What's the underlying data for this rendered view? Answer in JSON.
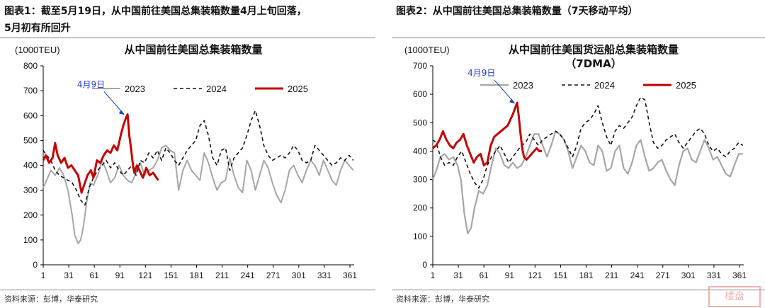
{
  "panel1": {
    "caption_line1": "图表1：截至5月19日，从中国前往美国总集装箱数量4月上旬回落，",
    "caption_line2": "5月初有所回升",
    "source": "资料来源：彭博，华泰研究"
  },
  "panel2": {
    "caption_line1": "图表2：从中国前往美国总集装箱数量（7天移动平均）",
    "source": "资料来源：彭博，华泰研究"
  },
  "watermark_text": "楼盘",
  "chart_data": [
    {
      "type": "line",
      "title": "从中国前往美国总集装箱数量",
      "subtitle": "",
      "unit_label": "(1000TEU)",
      "ylim": [
        0,
        800
      ],
      "yticks": [
        "0",
        "100",
        "200",
        "300",
        "400",
        "500",
        "600",
        "700",
        "800"
      ],
      "xlim": [
        1,
        366
      ],
      "xticks": [
        "1",
        "31",
        "61",
        "91",
        "121",
        "151",
        "181",
        "211",
        "241",
        "271",
        "301",
        "331",
        "361"
      ],
      "annotation": "4月9日",
      "annotation_point": [
        99,
        600
      ],
      "legend_position": "top-center",
      "series": [
        {
          "name": "2023",
          "color": "#a6a6a6",
          "dash": "solid",
          "width": 2,
          "x": [
            1,
            5,
            10,
            15,
            20,
            25,
            30,
            35,
            38,
            42,
            45,
            48,
            52,
            56,
            60,
            65,
            70,
            75,
            80,
            85,
            90,
            95,
            100,
            105,
            110,
            115,
            120,
            125,
            130,
            135,
            140,
            145,
            150,
            155,
            160,
            165,
            170,
            175,
            180,
            185,
            190,
            195,
            200,
            205,
            210,
            215,
            220,
            225,
            230,
            235,
            240,
            245,
            250,
            255,
            260,
            265,
            270,
            275,
            280,
            285,
            290,
            295,
            300,
            305,
            310,
            315,
            320,
            325,
            330,
            335,
            340,
            345,
            350,
            355,
            360,
            365
          ],
          "y": [
            310,
            340,
            380,
            360,
            390,
            360,
            300,
            200,
            120,
            85,
            100,
            150,
            250,
            330,
            320,
            360,
            420,
            380,
            330,
            350,
            400,
            360,
            340,
            330,
            370,
            410,
            360,
            380,
            390,
            420,
            470,
            480,
            460,
            450,
            300,
            380,
            420,
            380,
            360,
            340,
            450,
            410,
            350,
            300,
            330,
            340,
            430,
            360,
            310,
            290,
            420,
            380,
            300,
            360,
            420,
            390,
            330,
            280,
            250,
            300,
            380,
            400,
            360,
            330,
            380,
            420,
            400,
            360,
            420,
            380,
            340,
            320,
            380,
            420,
            400,
            380
          ]
        },
        {
          "name": "2024",
          "color": "#111111",
          "dash": "5,4",
          "width": 1.6,
          "x": [
            1,
            5,
            10,
            15,
            20,
            25,
            30,
            35,
            40,
            45,
            50,
            55,
            60,
            65,
            70,
            75,
            80,
            85,
            90,
            95,
            100,
            105,
            110,
            115,
            120,
            125,
            130,
            135,
            140,
            145,
            150,
            155,
            160,
            165,
            170,
            175,
            180,
            185,
            190,
            195,
            200,
            205,
            210,
            215,
            220,
            225,
            230,
            235,
            240,
            245,
            250,
            255,
            260,
            265,
            270,
            275,
            280,
            285,
            290,
            295,
            300,
            305,
            310,
            315,
            320,
            325,
            330,
            335,
            340,
            345,
            350,
            355,
            360,
            365
          ],
          "y": [
            460,
            440,
            420,
            380,
            360,
            350,
            340,
            330,
            300,
            260,
            240,
            310,
            350,
            380,
            400,
            420,
            390,
            410,
            380,
            360,
            380,
            400,
            360,
            420,
            410,
            450,
            430,
            460,
            420,
            470,
            450,
            420,
            400,
            430,
            460,
            480,
            500,
            560,
            580,
            520,
            430,
            400,
            460,
            470,
            380,
            430,
            450,
            470,
            520,
            580,
            620,
            560,
            480,
            440,
            420,
            430,
            440,
            430,
            450,
            480,
            460,
            420,
            410,
            420,
            480,
            460,
            440,
            420,
            400,
            410,
            430,
            420,
            440,
            420
          ]
        },
        {
          "name": "2025",
          "color": "#c00000",
          "dash": "solid",
          "width": 3,
          "x": [
            1,
            4,
            8,
            12,
            15,
            18,
            22,
            26,
            30,
            34,
            38,
            42,
            46,
            50,
            53,
            57,
            60,
            64,
            68,
            72,
            76,
            80,
            84,
            88,
            92,
            95,
            98,
            100,
            102,
            104,
            106,
            108,
            111,
            114,
            118,
            122,
            126,
            130,
            134,
            136
          ],
          "y": [
            420,
            440,
            410,
            430,
            490,
            440,
            410,
            430,
            390,
            400,
            380,
            360,
            290,
            330,
            360,
            380,
            350,
            420,
            410,
            440,
            460,
            450,
            480,
            460,
            520,
            560,
            590,
            605,
            520,
            470,
            410,
            370,
            400,
            380,
            350,
            390,
            360,
            370,
            350,
            340
          ]
        }
      ]
    },
    {
      "type": "line",
      "title": "从中国前往美国货运船总集装箱数量",
      "subtitle": "（7DMA）",
      "unit_label": "(1000TEU)",
      "ylim": [
        0,
        700
      ],
      "yticks": [
        "0",
        "100",
        "200",
        "300",
        "400",
        "500",
        "600",
        "700"
      ],
      "xlim": [
        1,
        366
      ],
      "xticks": [
        "1",
        "31",
        "61",
        "91",
        "121",
        "151",
        "181",
        "211",
        "241",
        "271",
        "301",
        "331",
        "361"
      ],
      "annotation": "4月9日",
      "annotation_point": [
        100,
        565
      ],
      "legend_position": "top-center",
      "series": [
        {
          "name": "2023",
          "color": "#a6a6a6",
          "dash": "solid",
          "width": 2.2,
          "x": [
            1,
            5,
            10,
            15,
            20,
            25,
            30,
            34,
            38,
            42,
            46,
            50,
            55,
            60,
            65,
            70,
            75,
            80,
            85,
            90,
            95,
            100,
            105,
            110,
            115,
            120,
            125,
            130,
            135,
            140,
            145,
            150,
            155,
            160,
            165,
            170,
            175,
            180,
            185,
            190,
            195,
            200,
            205,
            210,
            215,
            220,
            225,
            230,
            235,
            240,
            245,
            250,
            255,
            260,
            265,
            270,
            275,
            280,
            285,
            290,
            295,
            300,
            305,
            310,
            315,
            320,
            325,
            330,
            335,
            340,
            345,
            350,
            355,
            360,
            365
          ],
          "y": [
            300,
            330,
            380,
            390,
            370,
            380,
            350,
            300,
            180,
            110,
            130,
            200,
            260,
            250,
            280,
            350,
            410,
            390,
            350,
            340,
            360,
            340,
            350,
            380,
            420,
            460,
            460,
            420,
            380,
            420,
            470,
            460,
            440,
            400,
            340,
            380,
            420,
            400,
            360,
            350,
            420,
            400,
            330,
            340,
            400,
            420,
            340,
            320,
            360,
            420,
            440,
            380,
            330,
            340,
            360,
            370,
            330,
            300,
            280,
            350,
            400,
            410,
            370,
            360,
            400,
            440,
            410,
            370,
            380,
            350,
            320,
            310,
            350,
            390,
            390
          ]
        },
        {
          "name": "2024",
          "color": "#111111",
          "dash": "5,4",
          "width": 1.6,
          "x": [
            1,
            5,
            10,
            15,
            20,
            25,
            30,
            35,
            40,
            45,
            50,
            55,
            60,
            65,
            70,
            75,
            80,
            85,
            90,
            95,
            100,
            105,
            110,
            115,
            120,
            125,
            130,
            135,
            140,
            145,
            150,
            155,
            160,
            165,
            170,
            175,
            180,
            185,
            190,
            195,
            200,
            205,
            210,
            215,
            220,
            225,
            230,
            235,
            240,
            245,
            250,
            255,
            260,
            265,
            270,
            275,
            280,
            285,
            290,
            295,
            300,
            305,
            310,
            315,
            320,
            325,
            330,
            335,
            340,
            345,
            350,
            355,
            360,
            365
          ],
          "y": [
            440,
            430,
            380,
            350,
            360,
            350,
            380,
            400,
            360,
            320,
            290,
            270,
            300,
            350,
            380,
            400,
            420,
            390,
            360,
            380,
            400,
            420,
            430,
            460,
            440,
            420,
            440,
            450,
            460,
            470,
            460,
            440,
            410,
            380,
            420,
            480,
            500,
            510,
            530,
            560,
            500,
            450,
            420,
            470,
            490,
            480,
            500,
            520,
            560,
            590,
            580,
            500,
            430,
            410,
            420,
            440,
            450,
            460,
            430,
            410,
            430,
            450,
            470,
            480,
            460,
            420,
            400,
            410,
            390,
            380,
            400,
            410,
            430,
            420
          ]
        },
        {
          "name": "2025",
          "color": "#c00000",
          "dash": "solid",
          "width": 3,
          "x": [
            1,
            5,
            9,
            13,
            17,
            21,
            25,
            29,
            33,
            37,
            41,
            45,
            49,
            53,
            57,
            61,
            65,
            69,
            73,
            77,
            81,
            85,
            89,
            92,
            95,
            98,
            100,
            102,
            104,
            106,
            108,
            111,
            114,
            117,
            120,
            123,
            126,
            129
          ],
          "y": [
            410,
            420,
            440,
            470,
            440,
            420,
            410,
            430,
            440,
            460,
            420,
            390,
            360,
            380,
            390,
            350,
            360,
            420,
            450,
            460,
            470,
            480,
            490,
            510,
            530,
            555,
            570,
            520,
            460,
            410,
            380,
            370,
            380,
            390,
            400,
            410,
            400,
            400
          ]
        }
      ]
    }
  ]
}
